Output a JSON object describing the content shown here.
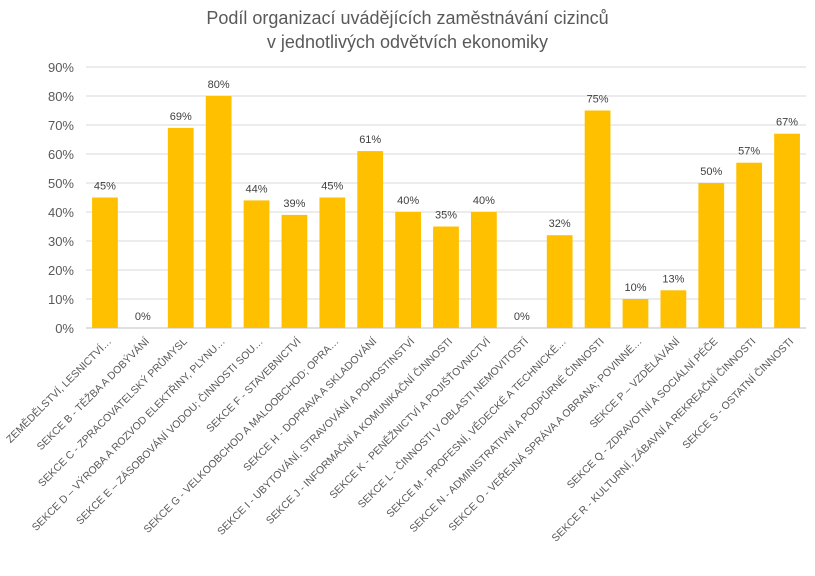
{
  "chart_data": {
    "type": "bar",
    "title_lines": [
      "Podíl organizací uvádějících zaměstnávání cizinců",
      "v jednotlivých odvětvích ekonomiky"
    ],
    "categories": [
      "ZEMĚDĚLSTVÍ, LESNICTVÍ…",
      "SEKCE B - TĚŽBA A DOBÝVÁNÍ",
      "SEKCE C - ZPRACOVATELSKÝ PRŮMYSL",
      "SEKCE D – VÝROBA A ROZVOD ELEKTŘINY, PLYNU…",
      "SEKCE E – ZÁSOBOVÁNÍ VODOU; ČINNOSTI SOU…",
      "SEKCE F - STAVEBNICTVÍ",
      "SEKCE G - VELKOOBCHOD A MALOOBCHOD; OPRA…",
      "SEKCE H - DOPRAVA A SKLADOVÁNÍ",
      "SEKCE I - UBYTOVÁNÍ, STRAVOVÁNÍ A POHOSTINSTVÍ",
      "SEKCE J - INFORMAČNÍ A KOMUNIKAČNÍ ČINNOSTI",
      "SEKCE K - PENĚŽNICTVÍ A POJIŠŤOVNICTVÍ",
      "SEKCE L - ČINNOSTI V OBLASTI NEMOVITOSTÍ",
      "SEKCE M - PROFESNÍ, VĚDECKÉ A TECHNICKÉ…",
      "SEKCE N - ADMINISTRATIVNÍ A PODPŮRNÉ ČINNOSTI",
      "SEKCE O - VEŘEJNÁ SPRÁVA A OBRANA; POVINNÉ…",
      "SEKCE P – VZDĚLÁVÁNÍ",
      "SEKCE Q - ZDRAVOTNÍ A SOCIÁLNÍ PÉČE",
      "SEKCE R - KULTURNÍ, ZÁBAVNÍ A REKREAČNÍ ČINNOSTI",
      "SEKCE S - OSTATNÍ ČINNOSTI"
    ],
    "values": [
      45,
      0,
      69,
      80,
      44,
      39,
      45,
      61,
      40,
      35,
      40,
      0,
      32,
      75,
      10,
      13,
      50,
      57,
      67
    ],
    "data_labels": [
      "45%",
      "0%",
      "69%",
      "80%",
      "44%",
      "39%",
      "45%",
      "61%",
      "40%",
      "35%",
      "40%",
      "0%",
      "32%",
      "75%",
      "10%",
      "13%",
      "50%",
      "57%",
      "67%"
    ],
    "ylim": [
      0,
      90
    ],
    "yticks": [
      0,
      10,
      20,
      30,
      40,
      50,
      60,
      70,
      80,
      90
    ],
    "ytick_labels": [
      "0%",
      "10%",
      "20%",
      "30%",
      "40%",
      "50%",
      "60%",
      "70%",
      "80%",
      "90%"
    ],
    "grid": true,
    "legend": "none",
    "colors": {
      "bar": "#FFC000",
      "grid": "#D9D9D9",
      "axis": "#BFBFBF"
    }
  }
}
